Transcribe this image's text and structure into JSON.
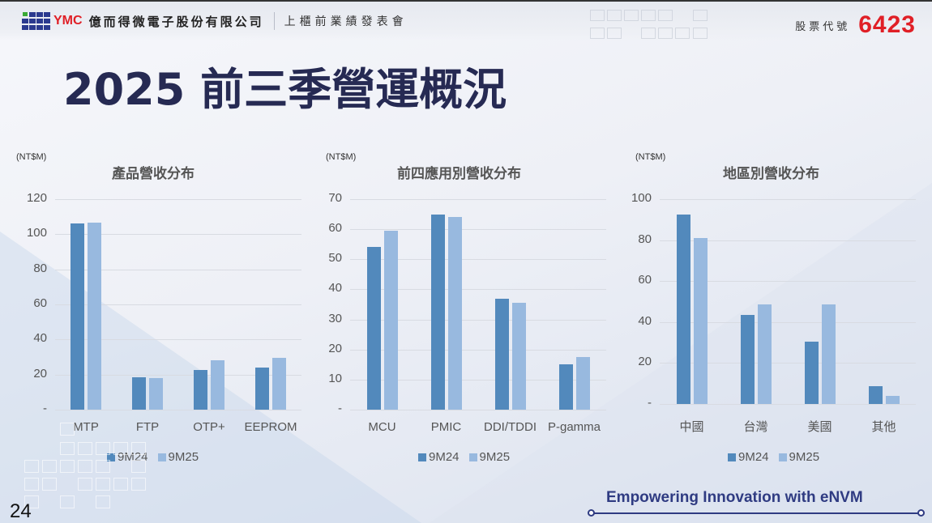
{
  "header": {
    "logo_text": "YMC",
    "company_name": "億而得微電子股份有限公司",
    "event_name": "上櫃前業績發表會",
    "stock_label": "股票代號",
    "stock_code": "6423"
  },
  "page_title": "2025 前三季營運概況",
  "footer": {
    "page_number": "24",
    "tagline": "Empowering Innovation with eNVM"
  },
  "colors": {
    "series_9M24": "#5289bc",
    "series_9M25": "#98b9df",
    "brand_red": "#e01f26",
    "brand_navy": "#262a53"
  },
  "charts": [
    {
      "unit": "(NT$M)",
      "title": "產品營收分布",
      "yticks": [
        "120",
        "100",
        "80",
        "60",
        "40",
        "20",
        "-"
      ],
      "categories": [
        "MTP",
        "FTP",
        "OTP+",
        "EEPROM"
      ],
      "legend": [
        "9M24",
        "9M25"
      ]
    },
    {
      "unit": "(NT$M)",
      "title": "前四應用別營收分布",
      "yticks": [
        "70",
        "60",
        "50",
        "40",
        "30",
        "20",
        "10",
        "-"
      ],
      "categories": [
        "MCU",
        "PMIC",
        "DDI/TDDI",
        "P-gamma"
      ],
      "legend": [
        "9M24",
        "9M25"
      ]
    },
    {
      "unit": "(NT$M)",
      "title": "地區別營收分布",
      "yticks": [
        "100",
        "80",
        "60",
        "40",
        "20",
        "-"
      ],
      "categories": [
        "中國",
        "台灣",
        "美國",
        "其他"
      ],
      "legend": [
        "9M24",
        "9M25"
      ]
    }
  ],
  "chart_data": [
    {
      "type": "bar",
      "title": "產品營收分布",
      "ylabel": "(NT$M)",
      "xlabel": "",
      "categories": [
        "MTP",
        "FTP",
        "OTP+",
        "EEPROM"
      ],
      "series": [
        {
          "name": "9M24",
          "values": [
            106,
            18.5,
            22.5,
            24
          ]
        },
        {
          "name": "9M25",
          "values": [
            106.5,
            18,
            28,
            29.5
          ]
        }
      ],
      "ylim": [
        0,
        120
      ],
      "grid": true,
      "legend_position": "bottom"
    },
    {
      "type": "bar",
      "title": "前四應用別營收分布",
      "ylabel": "(NT$M)",
      "xlabel": "",
      "categories": [
        "MCU",
        "PMIC",
        "DDI/TDDI",
        "P-gamma"
      ],
      "series": [
        {
          "name": "9M24",
          "values": [
            54,
            65,
            37,
            15
          ]
        },
        {
          "name": "9M25",
          "values": [
            59.5,
            64,
            35.5,
            17.5
          ]
        }
      ],
      "ylim": [
        0,
        70
      ],
      "grid": true,
      "legend_position": "bottom"
    },
    {
      "type": "bar",
      "title": "地區別營收分布",
      "ylabel": "(NT$M)",
      "xlabel": "",
      "categories": [
        "中國",
        "台灣",
        "美國",
        "其他"
      ],
      "series": [
        {
          "name": "9M24",
          "values": [
            92.5,
            43.5,
            30.5,
            8.5
          ]
        },
        {
          "name": "9M25",
          "values": [
            81,
            48.5,
            48.5,
            4
          ]
        }
      ],
      "ylim": [
        0,
        100
      ],
      "grid": true,
      "legend_position": "bottom"
    }
  ]
}
